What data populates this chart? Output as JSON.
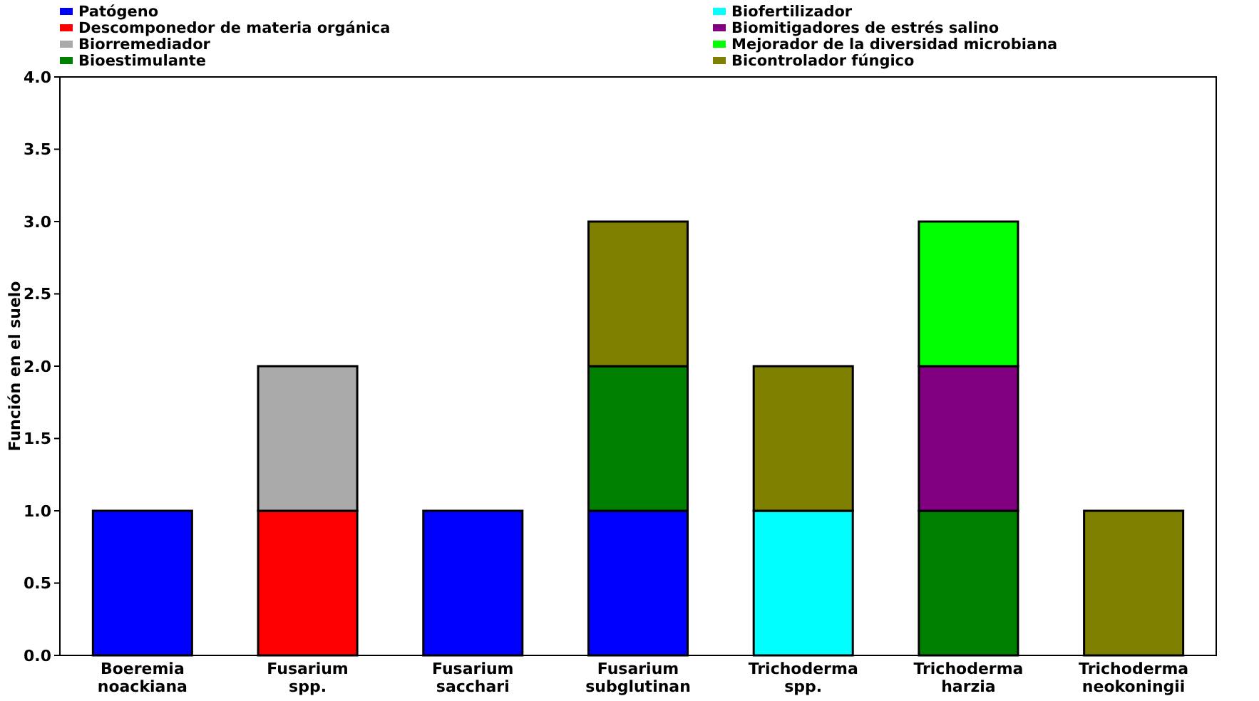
{
  "chart_data": {
    "type": "bar",
    "stacked": true,
    "ylabel": "Función en el suelo",
    "categories": [
      "Boeremia noackiana",
      "Fusarium spp.",
      "Fusarium sacchari",
      "Fusarium subglutinan",
      "Trichoderma spp.",
      "Trichoderma harzia",
      "Trichoderma neokoningii"
    ],
    "series": [
      {
        "name": "Patógeno",
        "color": "#0000ff",
        "values": [
          1,
          null,
          1,
          1,
          null,
          null,
          null
        ]
      },
      {
        "name": "Descomponedor de materia orgánica",
        "color": "#ff0000",
        "values": [
          null,
          1,
          null,
          null,
          null,
          null,
          null
        ]
      },
      {
        "name": "Biorremediador",
        "color": "#aaaaaa",
        "values": [
          null,
          1,
          null,
          null,
          null,
          null,
          null
        ]
      },
      {
        "name": "Bioestimulante",
        "color": "#008000",
        "values": [
          null,
          null,
          null,
          1,
          null,
          1,
          null
        ]
      },
      {
        "name": "Biofertilizador",
        "color": "#00ffff",
        "values": [
          null,
          null,
          null,
          null,
          1,
          null,
          null
        ]
      },
      {
        "name": "Biomitigadores de estrés salino",
        "color": "#800080",
        "values": [
          null,
          null,
          null,
          null,
          null,
          1,
          null
        ]
      },
      {
        "name": "Mejorador de la diversidad microbiana",
        "color": "#00ff00",
        "values": [
          null,
          null,
          null,
          null,
          null,
          1,
          null
        ]
      },
      {
        "name": "Bicontrolador fúngico",
        "color": "#808000",
        "values": [
          null,
          null,
          null,
          1,
          1,
          null,
          1
        ]
      }
    ],
    "ylim": [
      0,
      4
    ],
    "yticks": [
      {
        "value": 0,
        "label": "0.0"
      },
      {
        "value": 0.5,
        "label": "0.5"
      },
      {
        "value": 1,
        "label": "1.0"
      },
      {
        "value": 1.5,
        "label": "1.5"
      },
      {
        "value": 2,
        "label": "2.0"
      },
      {
        "value": 2.5,
        "label": "2.5"
      },
      {
        "value": 3,
        "label": "3.0"
      },
      {
        "value": 3.5,
        "label": "3.5"
      },
      {
        "value": 4,
        "label": "4.0"
      }
    ],
    "legend": "top",
    "grid": false
  }
}
